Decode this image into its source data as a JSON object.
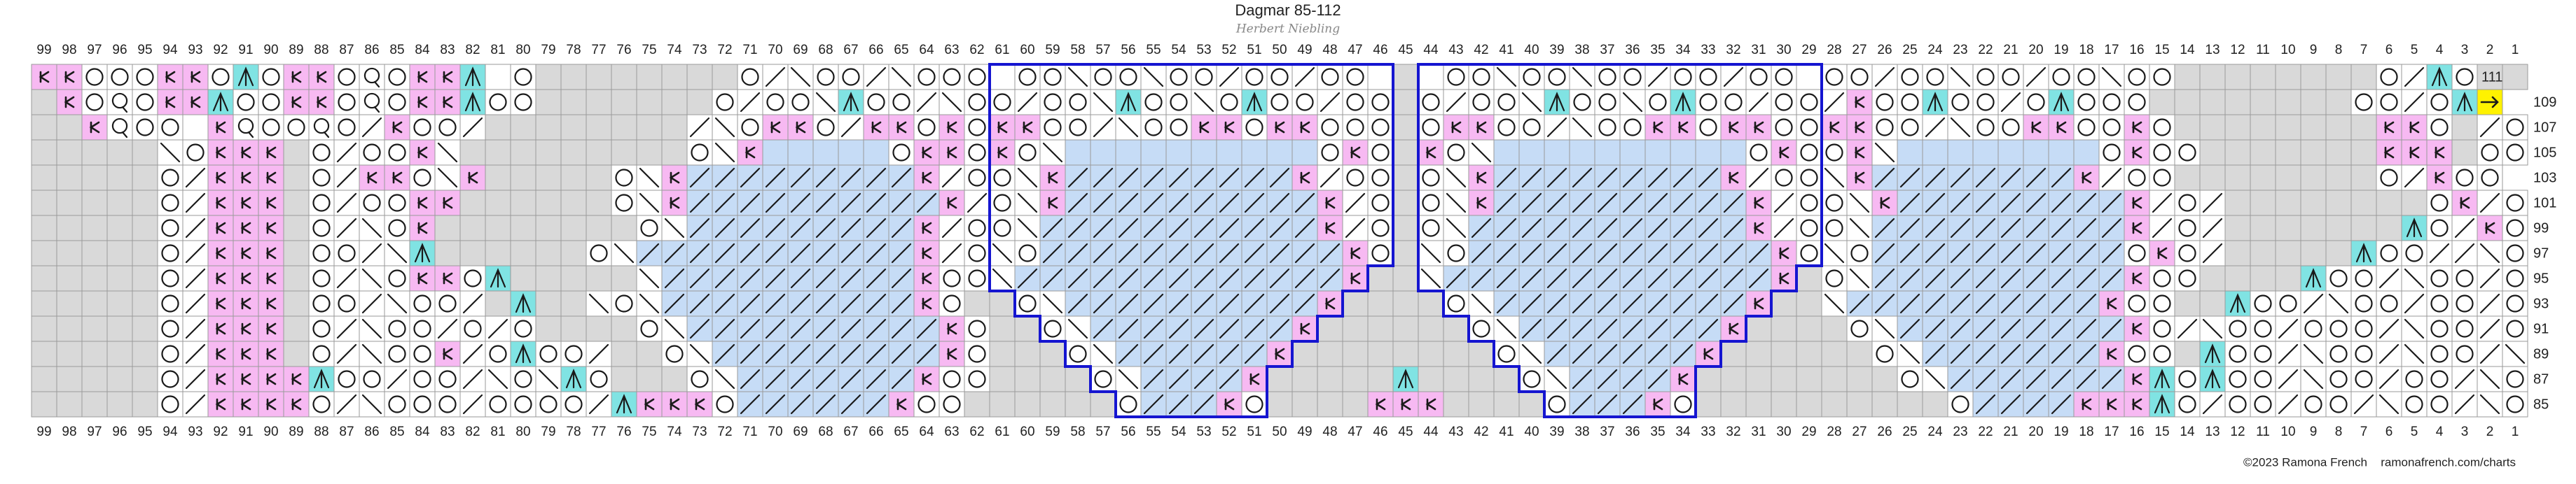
{
  "header": {
    "title": "Dagmar 85-112",
    "subtitle": "Herbert Niebling"
  },
  "columns": [
    99,
    98,
    97,
    96,
    95,
    94,
    93,
    92,
    91,
    90,
    89,
    88,
    87,
    86,
    85,
    84,
    83,
    82,
    81,
    80,
    79,
    78,
    77,
    76,
    75,
    74,
    73,
    72,
    71,
    70,
    69,
    68,
    67,
    66,
    65,
    64,
    63,
    62,
    61,
    60,
    59,
    58,
    57,
    56,
    55,
    54,
    53,
    52,
    51,
    50,
    49,
    48,
    47,
    46,
    45,
    44,
    43,
    42,
    41,
    40,
    39,
    38,
    37,
    36,
    35,
    34,
    33,
    32,
    31,
    30,
    29,
    28,
    27,
    26,
    25,
    24,
    23,
    22,
    21,
    20,
    19,
    18,
    17,
    16,
    15,
    14,
    13,
    12,
    11,
    10,
    9,
    8,
    7,
    6,
    5,
    4,
    3,
    2,
    1
  ],
  "rows": [
    {
      "label": "111",
      "cells": "kkoookkoaokkoqokka_o........olroolrooo_oorooroolooloo_._oorooroolooloo_oolooroolooroo........olao.."
    },
    {
      "label": "109",
      "cells": ".koqokkaookkoqokkaoo.......olooraoolroolooraooroaooloo.olooraooroaooloolkooaooloaooo........ooloay"
    },
    {
      "label": "107",
      "cells": "..kqoo_kqooqolkool........lrokkolkkokokkoolrookkokkooo.okkoolrookkokkookkoolrookkooko........kko.lo"
    },
    {
      "label": "105",
      "cells": ".....rokkk.olookr.........orkBBBBBokkokorBBBBBBBBBBoko.korBBBBBBBBBBokookrBBBBBBBBokoo.......kkk.oo"
    },
    {
      "label": "103",
      "cells": ".....olkkk.olkkork.....orkbbbbbbbbbkloorkbbbbbbbbbkloo.orkbbbbbbbbbkloorkbbbbbbbbkloo........olkoo"
    },
    {
      "label": "101",
      "cells": ".....olkkk.olookk......orkbbbbbbbbbbklorkbbbbbbbbbbklo.orkbbbbbbbbbbkloorkbbbbbbbbbklol........oklo"
    },
    {
      "label": "99",
      "cells": ".....olkkk.olrok........orbbbbbbbbbkloorbbbbbbbbbbbklo.orbbbbbbbbbbbkloorbbbbbbbbbbklol.......aolko"
    },
    {
      "label": "97",
      "cells": ".....olkkk.oolra......orbbbbbbbbbbbklorobbbbbbbbbbbbko.robbbbbbbbbbbbkorobbbbbbbbbbokol.....aoollro"
    },
    {
      "label": "95",
      "cells": ".....olkkk.olrokkoa.....rbbbbbbbbbbkoorbbbbbbbbbbbbbk..rbbbbbbbbbbbbbk.orbbbbbbbbbbkoo....aoolroolo"
    },
    {
      "label": "93",
      "cells": ".....olkkk.oolrool.a..rorbbbbbbbbbbko..orbbbbbbbbbbk....orbbbbbbbbbbk..rbbbbbbbbbbkoo..aoolrooloolo"
    },
    {
      "label": "91",
      "cells": ".....olkkk.olroololo....orbbbbbbbbbbko..orbbbbbbbbk......orbbbbbbbbk....orbbbbbbbbbkolroolooolroolo"
    },
    {
      "label": "89",
      "cells": ".....olkkk.olrookloaool..orbbbbbbbbbko...orbbbbbbk........orbbbbbbk......orbbbbbbbkoo.aoolroolroolr"
    },
    {
      "label": "87",
      "cells": ".....olkkkkaooloolrorao...orbbbbbbbkoo....orbbbbk.....a....orbbbbk........orbbbbbbbkaoaoolrooloolro"
    },
    {
      "label": "85",
      "cells": ".....olkkkkolroooloooolakkkobbbbbbkoo......obbbko....kkk....obbbko..........obbbbkkkaolooloolroolro"
    }
  ],
  "footer": {
    "copyright": "©2023 Ramona French",
    "site": "ramonafrench.com/charts"
  }
}
